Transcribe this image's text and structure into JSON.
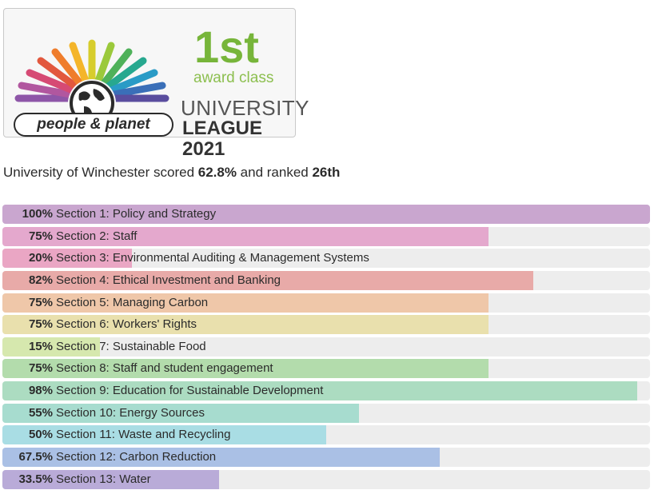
{
  "badge": {
    "logo_text": "people & planet",
    "rank_text": "1st",
    "class_text": "award class",
    "league_line1": "UNIVERSITY",
    "league_line2": "LEAGUE 2021"
  },
  "summary": {
    "prefix": "University of Winchester scored ",
    "score": "62.8%",
    "middle": " and ranked ",
    "rank": "26th"
  },
  "sections": [
    {
      "pct_label": "100%",
      "label": "Section 1: Policy and Strategy",
      "value": 100,
      "color": "#c9a6cf"
    },
    {
      "pct_label": "75%",
      "label": "Section 2: Staff",
      "value": 75,
      "color": "#e4a8cd"
    },
    {
      "pct_label": "20%",
      "label": "Section 3: Environmental Auditing & Management Systems",
      "value": 20,
      "color": "#eaa6c4"
    },
    {
      "pct_label": "82%",
      "label": "Section 4: Ethical Investment and Banking",
      "value": 82,
      "color": "#e8aaa8"
    },
    {
      "pct_label": "75%",
      "label": "Section 5: Managing Carbon",
      "value": 75,
      "color": "#efc7a9"
    },
    {
      "pct_label": "75%",
      "label": "Section 6: Workers' Rights",
      "value": 75,
      "color": "#e9e0ad"
    },
    {
      "pct_label": "15%",
      "label": "Section 7: Sustainable Food",
      "value": 15,
      "color": "#d6e8ae"
    },
    {
      "pct_label": "75%",
      "label": "Section 8: Staff and student engagement",
      "value": 75,
      "color": "#b3dcac"
    },
    {
      "pct_label": "98%",
      "label": "Section 9: Education for Sustainable Development",
      "value": 98,
      "color": "#acdcc1"
    },
    {
      "pct_label": "55%",
      "label": "Section 10: Energy Sources",
      "value": 55,
      "color": "#a7dccf"
    },
    {
      "pct_label": "50%",
      "label": "Section 11: Waste and Recycling",
      "value": 50,
      "color": "#a9dde4"
    },
    {
      "pct_label": "67.5%",
      "label": "Section 12: Carbon Reduction",
      "value": 67.5,
      "color": "#aac0e5"
    },
    {
      "pct_label": "33.5%",
      "label": "Section 13: Water",
      "value": 33.5,
      "color": "#b9abd8"
    }
  ]
}
